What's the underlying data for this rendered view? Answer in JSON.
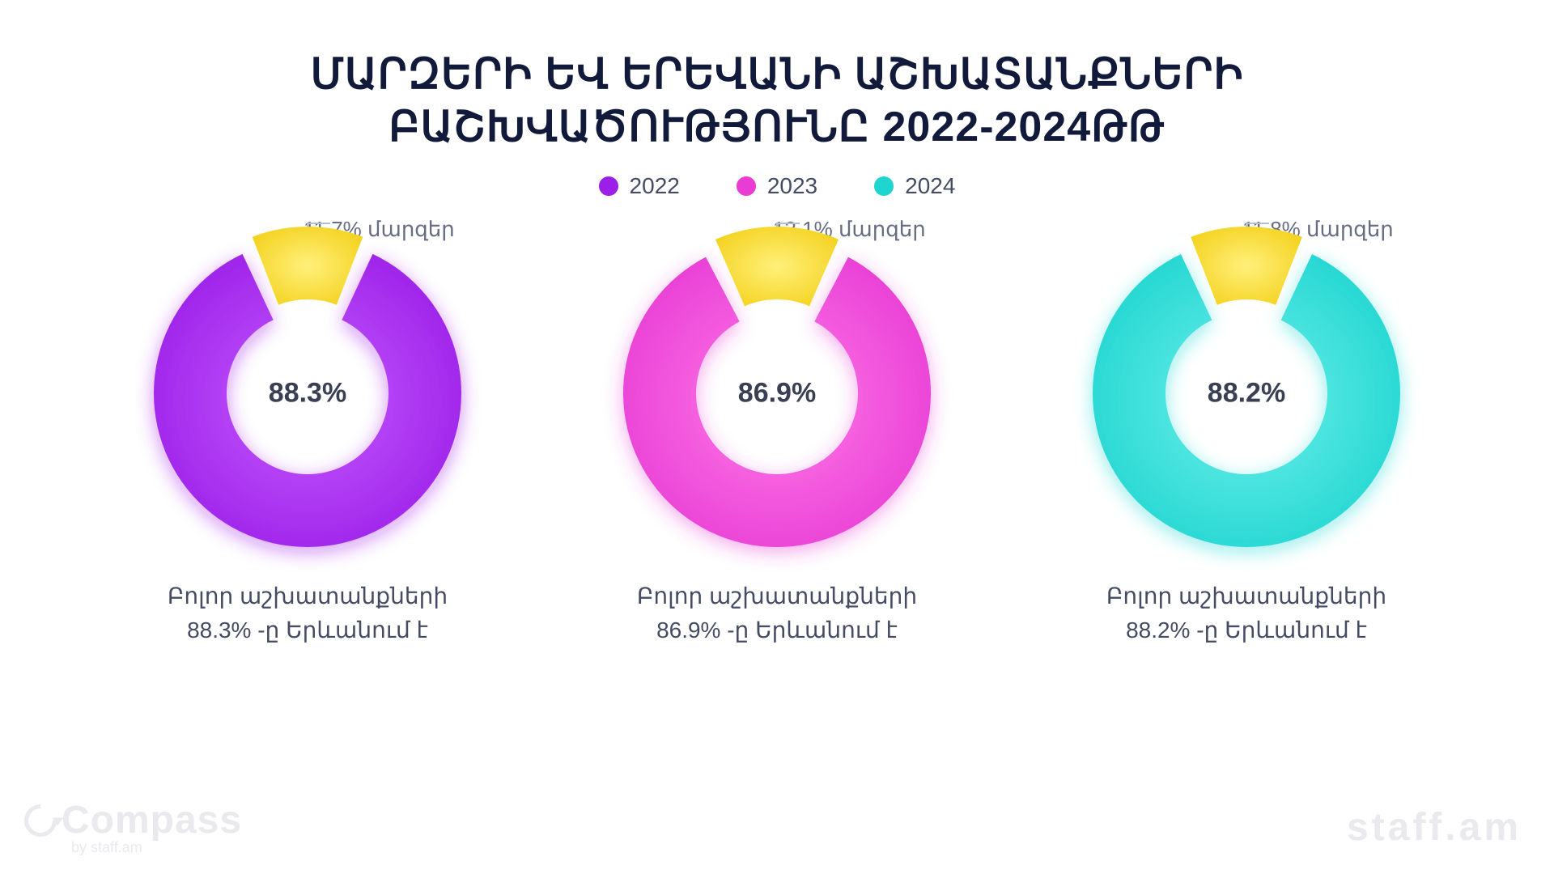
{
  "title_line1": "ՄԱՐԶԵՐԻ ԵՎ ԵՐԵՎԱՆԻ ԱՇԽԱՏԱՆՔՆԵՐԻ",
  "title_line2": "ԲԱՇԽՎԱԾՈՒԹՅՈՒՆԸ 2022-2024ԹԹ",
  "title_color": "#111a3a",
  "title_fontsize": 52,
  "background_color": "#ffffff",
  "legend": [
    {
      "label": "2022",
      "color": "#9b1fe8"
    },
    {
      "label": "2023",
      "color": "#e83cd4"
    },
    {
      "label": "2024",
      "color": "#1fd5d0"
    }
  ],
  "charts": [
    {
      "year": "2022",
      "type": "donut",
      "main_value": 88.3,
      "main_label": "88.3%",
      "minor_value": 11.7,
      "minor_label": "11.7% մարզեր",
      "main_color": "#9b1fe8",
      "main_gradient_light": "#c65bff",
      "minor_color": "#f4d21f",
      "minor_gradient_light": "#fff07a",
      "glow_color": "#9b1fe8",
      "inner_radius": 100,
      "outer_radius": 190,
      "gap_deg": 4,
      "caption_line1": "Բոլոր աշխատանքների",
      "caption_line2": "88.3% -ը Երևանում է"
    },
    {
      "year": "2023",
      "type": "donut",
      "main_value": 86.9,
      "main_label": "86.9%",
      "minor_value": 13.1,
      "minor_label": "13.1% մարզեր",
      "main_color": "#e83cd4",
      "main_gradient_light": "#ff7ae9",
      "minor_color": "#f4d21f",
      "minor_gradient_light": "#fff07a",
      "glow_color": "#e83cd4",
      "inner_radius": 100,
      "outer_radius": 190,
      "gap_deg": 4,
      "caption_line1": "Բոլոր աշխատանքների",
      "caption_line2": "86.9% -ը Երևանում է"
    },
    {
      "year": "2024",
      "type": "donut",
      "main_value": 88.2,
      "main_label": "88.2%",
      "minor_value": 11.8,
      "minor_label": "11.8% մարզեր",
      "main_color": "#1fd5d0",
      "main_gradient_light": "#6ef0eb",
      "minor_color": "#f4d21f",
      "minor_gradient_light": "#fff07a",
      "glow_color": "#1fd5d0",
      "inner_radius": 100,
      "outer_radius": 190,
      "gap_deg": 4,
      "caption_line1": "Բոլոր աշխատանքների",
      "caption_line2": "88.2% -ը Երևանում է"
    }
  ],
  "center_label_fontsize": 34,
  "callout_fontsize": 26,
  "caption_fontsize": 28,
  "callout_line_color": "#b9bdc9",
  "watermark_left_main": "Compass",
  "watermark_left_sub": "by staff.am",
  "watermark_right": "staff.am",
  "watermark_color": "#e9e9ee"
}
